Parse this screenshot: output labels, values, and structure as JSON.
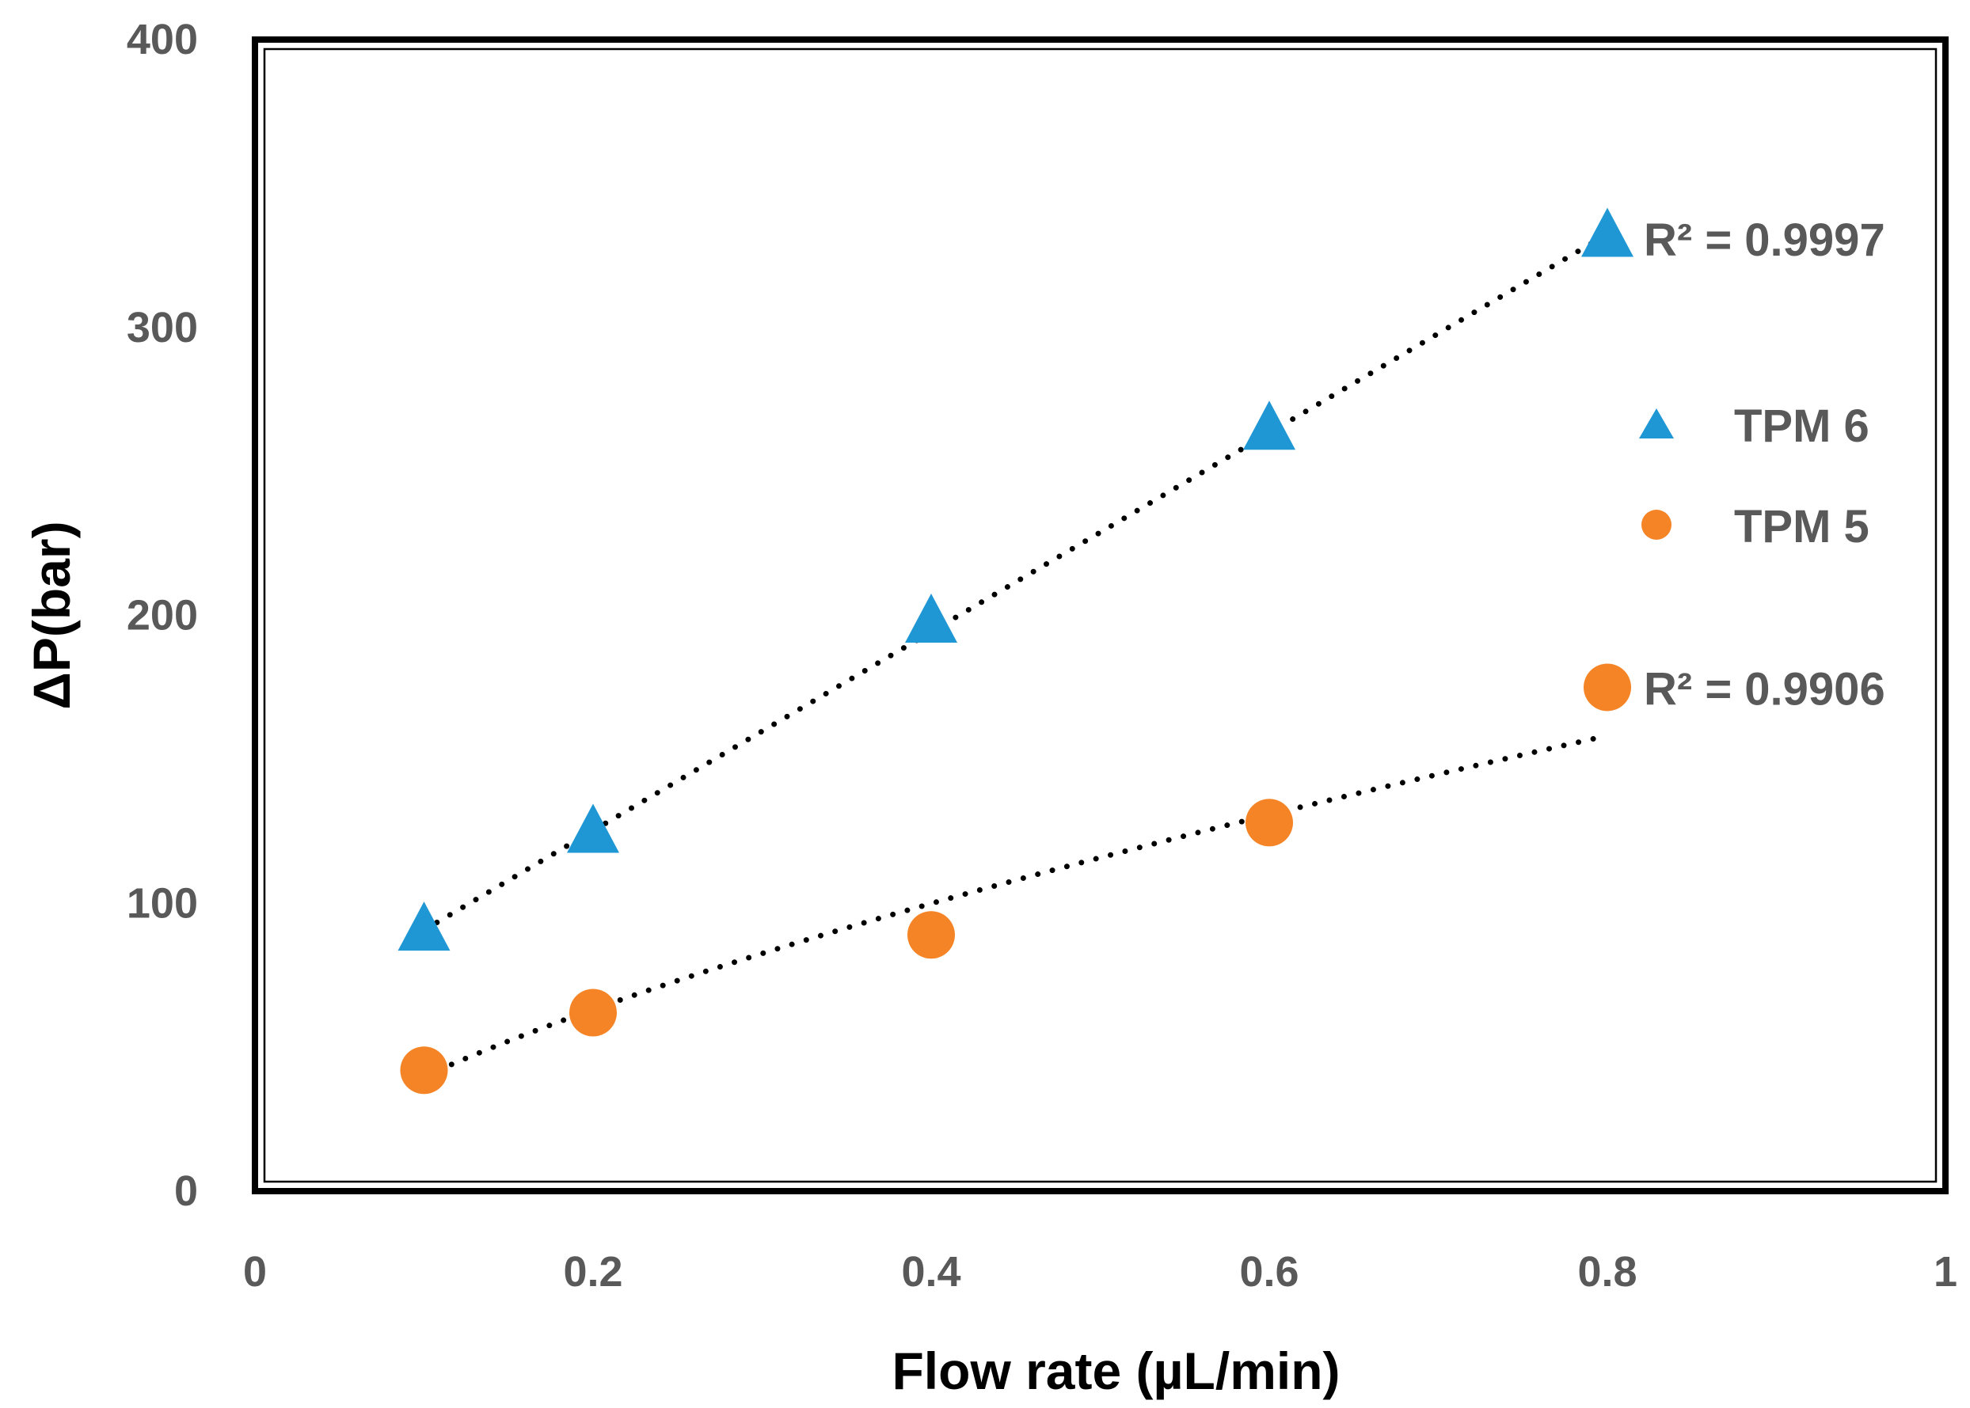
{
  "chart_data": {
    "type": "scatter",
    "title": "",
    "xlabel": "Flow rate (µL/min)",
    "ylabel": "ΔP(bar)",
    "xlim": [
      0,
      1
    ],
    "ylim": [
      0,
      400
    ],
    "xticks": [
      "0",
      "0.2",
      "0.4",
      "0.6",
      "0.8",
      "1"
    ],
    "yticks": [
      "0",
      "100",
      "200",
      "300",
      "400"
    ],
    "grid": false,
    "legend_position": "right",
    "series": [
      {
        "name": "TPM 6",
        "marker": "triangle",
        "color": "#1f97d4",
        "x": [
          0.1,
          0.2,
          0.4,
          0.6,
          0.8
        ],
        "y": [
          90,
          124,
          197,
          264,
          331
        ],
        "trendline": "linear",
        "r2_label": "R² = 0.9997"
      },
      {
        "name": "TPM 5",
        "marker": "circle",
        "color": "#f58426",
        "x": [
          0.1,
          0.2,
          0.4,
          0.6,
          0.8
        ],
        "y": [
          42,
          62,
          89,
          128,
          175
        ],
        "trendline": "power",
        "r2_label": "R² = 0.9906"
      }
    ]
  }
}
